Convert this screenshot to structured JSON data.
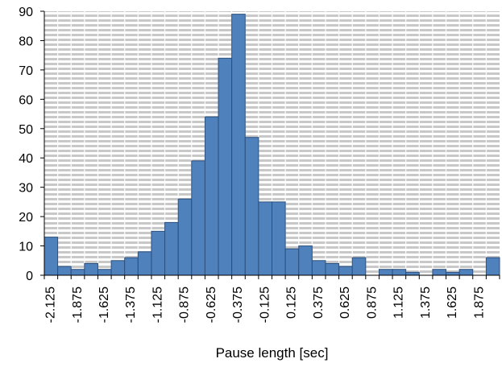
{
  "chart_data": {
    "type": "bar",
    "xlabel": "Pause length [sec]",
    "ylabel": "",
    "ylim": [
      0,
      90
    ],
    "yticks": [
      0,
      10,
      20,
      30,
      40,
      50,
      60,
      70,
      80,
      90
    ],
    "categories": [
      "-2.125",
      "-2",
      "-1.875",
      "-1.75",
      "-1.625",
      "-1.5",
      "-1.375",
      "-1.25",
      "-1.125",
      "-1",
      "-0.875",
      "-0.75",
      "-0.625",
      "-0.5",
      "-0.375",
      "-0.25",
      "-0.125",
      "0",
      "0.125",
      "0.25",
      "0.375",
      "0.5",
      "0.625",
      "0.75",
      "0.875",
      "1",
      "1.125",
      "1.25",
      "1.375",
      "1.5",
      "1.625",
      "1.75",
      "1.875",
      "2"
    ],
    "shown_tick_labels": [
      "-2.125",
      "-1.875",
      "-1.625",
      "-1.375",
      "-1.125",
      "-0.875",
      "-0.625",
      "-0.375",
      "-0.125",
      "0.125",
      "0.375",
      "0.625",
      "0.875",
      "1.125",
      "1.375",
      "1.625",
      "1.875"
    ],
    "values": [
      13,
      3,
      2,
      4,
      2,
      5,
      6,
      8,
      15,
      18,
      26,
      39,
      54,
      74,
      89,
      47,
      25,
      25,
      9,
      10,
      5,
      4,
      3,
      6,
      0,
      2,
      2,
      1,
      0,
      2,
      1,
      2,
      0,
      6
    ],
    "bar_color": "#4f81bd",
    "bar_edge_color": "#2c4f7c",
    "grid": true,
    "grid_style": "horizontal-hatched",
    "legend": "none"
  }
}
